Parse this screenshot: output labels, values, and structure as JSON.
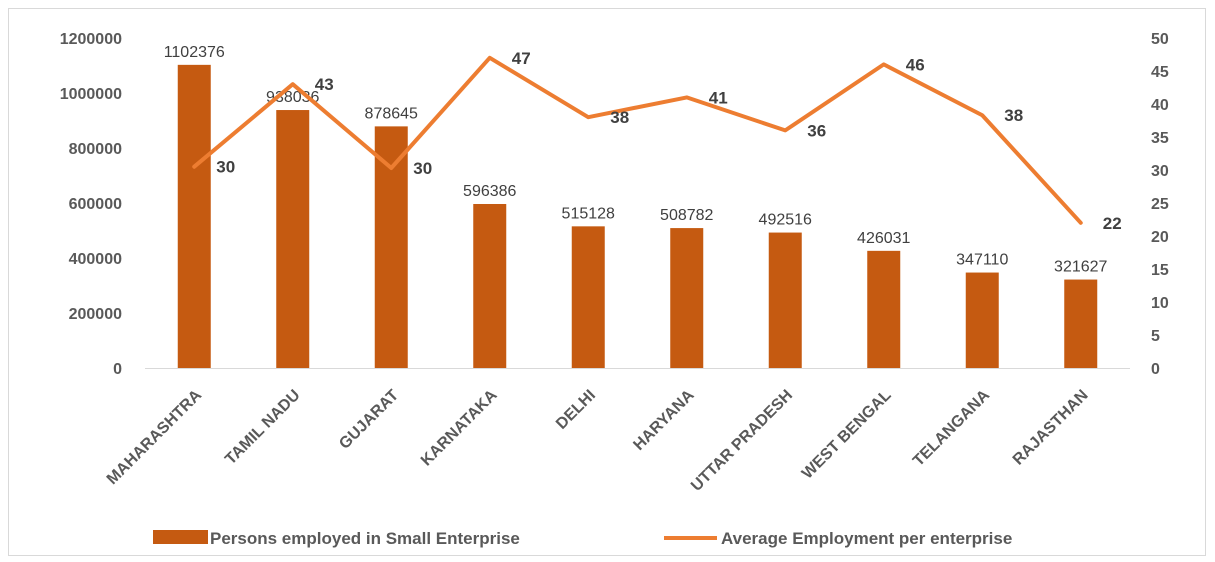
{
  "chart_data": {
    "type": "bar",
    "categories": [
      "MAHARASHTRA",
      "TAMIL NADU",
      "GUJARAT",
      "KARNATAKA",
      "DELHI",
      "HARYANA",
      "UTTAR PRADESH",
      "WEST BENGAL",
      "TELANGANA",
      "RAJASTHAN"
    ],
    "series": [
      {
        "name": "Persons employed in Small Enterprise",
        "type": "bar",
        "axis": "left",
        "color": "#c55a11",
        "values": [
          1102376,
          938036,
          878645,
          596386,
          515128,
          508782,
          492516,
          426031,
          347110,
          321627
        ],
        "labels": [
          "1102376",
          "938036",
          "878645",
          "596386",
          "515128",
          "508782",
          "492516",
          "426031",
          "347110",
          "321627"
        ]
      },
      {
        "name": "Average Employment per enterprise",
        "type": "line",
        "axis": "right",
        "color": "#ed7d31",
        "values": [
          30.5,
          43,
          30.3,
          47,
          38,
          41,
          36,
          46,
          38.3,
          22
        ],
        "labels": [
          "30",
          "43",
          "30",
          "47",
          "38",
          "41",
          "36",
          "46",
          "38",
          "22"
        ]
      }
    ],
    "left_axis": {
      "min": 0,
      "max": 1200000,
      "ticks": [
        "0",
        "200000",
        "400000",
        "600000",
        "800000",
        "1000000",
        "1200000"
      ]
    },
    "right_axis": {
      "min": 0,
      "max": 50,
      "ticks": [
        "0",
        "5",
        "10",
        "15",
        "20",
        "25",
        "30",
        "35",
        "40",
        "45",
        "50"
      ]
    },
    "grid": false,
    "legend_position": "bottom"
  }
}
